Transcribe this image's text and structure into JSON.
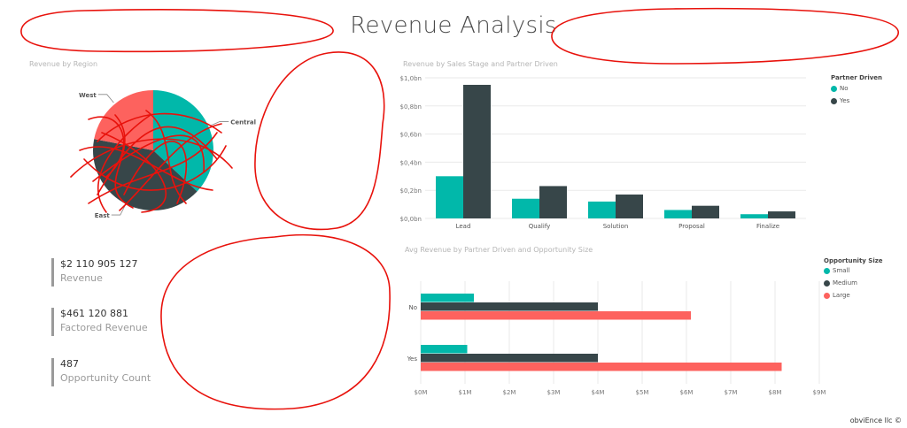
{
  "page": {
    "title": "Revenue Analysis",
    "footer": "obviEnce llc ©"
  },
  "colors": {
    "teal": "#01B8AA",
    "dark": "#374649",
    "red": "#FD625E",
    "annotation": "#E8120C"
  },
  "kpis": [
    {
      "value": "$2 110 905 127",
      "label": "Revenue"
    },
    {
      "value": "$461 120 881",
      "label": "Factored Revenue"
    },
    {
      "value": "487",
      "label": "Opportunity Count"
    }
  ],
  "chart_data": [
    {
      "type": "pie",
      "title": "Revenue by Region",
      "slices": [
        {
          "label": "Central",
          "value": 37,
          "color": "#01B8AA"
        },
        {
          "label": "East",
          "value": 41,
          "color": "#374649"
        },
        {
          "label": "West",
          "value": 22,
          "color": "#FD625E"
        }
      ]
    },
    {
      "type": "bar",
      "title": "Revenue by Sales Stage and Partner Driven",
      "categories": [
        "Lead",
        "Qualify",
        "Solution",
        "Proposal",
        "Finalize"
      ],
      "series": [
        {
          "name": "No",
          "color": "#01B8AA",
          "values": [
            0.3,
            0.14,
            0.12,
            0.06,
            0.03
          ]
        },
        {
          "name": "Yes",
          "color": "#374649",
          "values": [
            0.95,
            0.23,
            0.17,
            0.09,
            0.05
          ]
        }
      ],
      "ylim": [
        0,
        1.0
      ],
      "yticks": [
        "$0,0bn",
        "$0,2bn",
        "$0,4bn",
        "$0,6bn",
        "$0,8bn",
        "$1,0bn"
      ],
      "ytick_values": [
        0,
        0.2,
        0.4,
        0.6,
        0.8,
        1.0
      ],
      "legend_title": "Partner Driven",
      "legend_position": "top-right",
      "grid": true
    },
    {
      "type": "bar",
      "orientation": "horizontal",
      "title": "Avg Revenue by Partner Driven and Opportunity Size",
      "categories": [
        "No",
        "Yes"
      ],
      "series": [
        {
          "name": "Small",
          "color": "#01B8AA",
          "values": [
            1.2,
            1.05
          ]
        },
        {
          "name": "Medium",
          "color": "#374649",
          "values": [
            4.0,
            4.0
          ]
        },
        {
          "name": "Large",
          "color": "#FD625E",
          "values": [
            6.1,
            8.15
          ]
        }
      ],
      "xlim": [
        0,
        9
      ],
      "xticks": [
        "$0M",
        "$1M",
        "$2M",
        "$3M",
        "$4M",
        "$5M",
        "$6M",
        "$7M",
        "$8M",
        "$9M"
      ],
      "xtick_values": [
        0,
        1,
        2,
        3,
        4,
        5,
        6,
        7,
        8,
        9
      ],
      "legend_title": "Opportunity Size",
      "legend_position": "right",
      "grid": true
    }
  ]
}
